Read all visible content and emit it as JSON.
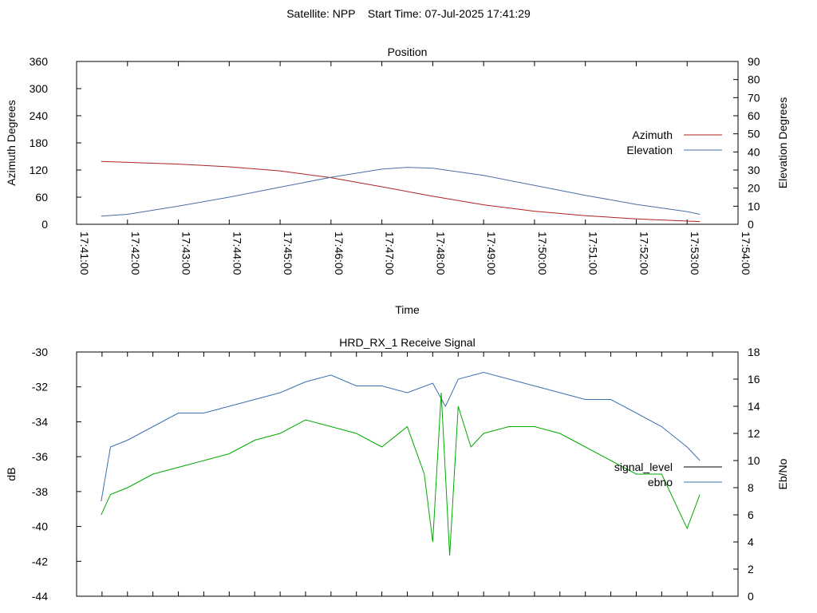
{
  "header": {
    "title": "Satellite: NPP    Start Time: 07-Jul-2025 17:41:29"
  },
  "chart_data": [
    {
      "type": "line",
      "title": "Position",
      "xlabel": "Time",
      "ylabel_left": "Azimuth Degrees",
      "ylabel_right": "Elevation Degrees",
      "x_ticks": [
        "17:41:00",
        "17:42:00",
        "17:43:00",
        "17:44:00",
        "17:45:00",
        "17:46:00",
        "17:47:00",
        "17:48:00",
        "17:49:00",
        "17:50:00",
        "17:51:00",
        "17:52:00",
        "17:53:00",
        "17:54:00"
      ],
      "xlim": [
        "17:41:00",
        "17:54:00"
      ],
      "ylim_left": [
        0,
        360
      ],
      "yticks_left": [
        "0",
        "60",
        "120",
        "180",
        "240",
        "300",
        "360"
      ],
      "ylim_right": [
        0,
        90
      ],
      "yticks_right": [
        "0",
        "10",
        "20",
        "30",
        "40",
        "50",
        "60",
        "70",
        "80",
        "90"
      ],
      "legend_position": "right",
      "grid": false,
      "series": [
        {
          "name": "Azimuth",
          "color": "#b22222",
          "axis": "left",
          "x": [
            "17:41:29",
            "17:42:00",
            "17:43:00",
            "17:44:00",
            "17:45:00",
            "17:46:00",
            "17:47:00",
            "17:48:00",
            "17:49:00",
            "17:50:00",
            "17:51:00",
            "17:52:00",
            "17:53:00",
            "17:53:15"
          ],
          "y": [
            139,
            137,
            133,
            127,
            118,
            103,
            83,
            62,
            43,
            29,
            19,
            12,
            7,
            6
          ]
        },
        {
          "name": "Elevation",
          "color": "#4a6fa5",
          "axis": "right",
          "x": [
            "17:41:29",
            "17:42:00",
            "17:43:00",
            "17:44:00",
            "17:45:00",
            "17:46:00",
            "17:47:00",
            "17:47:30",
            "17:48:00",
            "17:49:00",
            "17:50:00",
            "17:51:00",
            "17:52:00",
            "17:53:00",
            "17:53:15"
          ],
          "y": [
            4.5,
            5.5,
            10,
            15,
            20.5,
            26,
            30.5,
            31.5,
            31,
            27,
            21.5,
            16,
            11,
            7,
            5.5
          ]
        }
      ]
    },
    {
      "type": "line",
      "title": "HRD_RX_1 Receive Signal",
      "ylabel_left": "dB",
      "ylabel_right": "Eb/No",
      "ylim_left": [
        -44,
        -30
      ],
      "yticks_left": [
        "-44",
        "-42",
        "-40",
        "-38",
        "-36",
        "-34",
        "-32",
        "-30"
      ],
      "ylim_right": [
        0,
        18
      ],
      "yticks_right": [
        "0",
        "2",
        "4",
        "6",
        "8",
        "10",
        "12",
        "14",
        "16",
        "18"
      ],
      "xlim": [
        "17:41:00",
        "17:54:00"
      ],
      "legend_position": "right",
      "grid": false,
      "series": [
        {
          "name": "signal_level",
          "color": "#000000",
          "axis": "left",
          "x": [],
          "y": []
        },
        {
          "name": "ebno",
          "color": "#3a6fb0",
          "axis": "right",
          "x": [
            "17:41:29",
            "17:41:40",
            "17:42:00",
            "17:42:30",
            "17:43:00",
            "17:43:30",
            "17:44:00",
            "17:44:30",
            "17:45:00",
            "17:45:30",
            "17:46:00",
            "17:46:30",
            "17:47:00",
            "17:47:30",
            "17:48:00",
            "17:48:15",
            "17:48:30",
            "17:49:00",
            "17:49:30",
            "17:50:00",
            "17:50:30",
            "17:51:00",
            "17:51:30",
            "17:52:00",
            "17:52:30",
            "17:53:00",
            "17:53:15"
          ],
          "y": [
            7,
            11,
            11.5,
            12.5,
            13.5,
            13.5,
            14,
            14.5,
            15,
            15.8,
            16.3,
            15.5,
            15.5,
            15,
            15.7,
            14,
            16,
            16.5,
            16,
            15.5,
            15,
            14.5,
            14.5,
            13.5,
            12.5,
            11,
            10
          ]
        },
        {
          "name": "",
          "color": "#00aa00",
          "axis": "right",
          "x": [
            "17:41:29",
            "17:41:40",
            "17:42:00",
            "17:42:30",
            "17:43:00",
            "17:43:30",
            "17:44:00",
            "17:44:30",
            "17:45:00",
            "17:45:30",
            "17:46:00",
            "17:46:30",
            "17:47:00",
            "17:47:30",
            "17:47:50",
            "17:48:00",
            "17:48:10",
            "17:48:20",
            "17:48:30",
            "17:48:45",
            "17:49:00",
            "17:49:30",
            "17:50:00",
            "17:50:30",
            "17:51:00",
            "17:51:30",
            "17:52:00",
            "17:52:30",
            "17:53:00",
            "17:53:15"
          ],
          "y": [
            6,
            7.5,
            8,
            9,
            9.5,
            10,
            10.5,
            11.5,
            12,
            13,
            12.5,
            12,
            11,
            12.5,
            9,
            4,
            15,
            3,
            14,
            11,
            12,
            12.5,
            12.5,
            12,
            11,
            10,
            9,
            9,
            5,
            7.5
          ]
        }
      ]
    }
  ]
}
